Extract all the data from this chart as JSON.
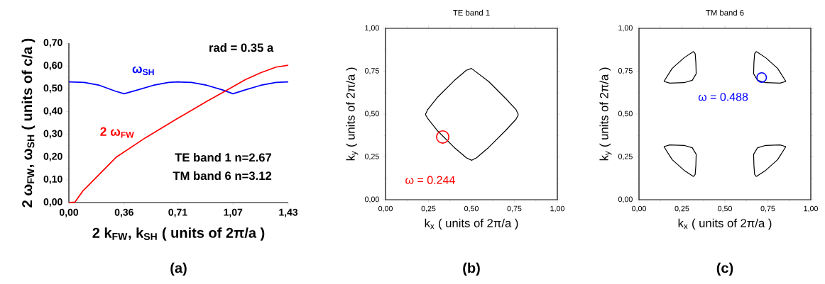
{
  "chart_data": [
    {
      "type": "line",
      "xlabel": "2 k$_{FW}$, k$_{SH}$ ( units of 2π/a )",
      "ylabel": "2 ω$_{FW}$, ω$_{SH}$ ( units of c/a )",
      "xlim": [
        0,
        1.43
      ],
      "ylim": [
        0,
        0.7
      ],
      "xticks": [
        {
          "value": 0,
          "label": "0,00"
        },
        {
          "value": 0.36,
          "label": "0,36"
        },
        {
          "value": 0.71,
          "label": "0,71"
        },
        {
          "value": 1.07,
          "label": "1,07"
        },
        {
          "value": 1.43,
          "label": "1,43"
        }
      ],
      "yticks": [
        {
          "value": 0,
          "label": "0,00"
        },
        {
          "value": 0.1,
          "label": "0,10"
        },
        {
          "value": 0.2,
          "label": "0,20"
        },
        {
          "value": 0.3,
          "label": "0,30"
        },
        {
          "value": 0.4,
          "label": "0,40"
        },
        {
          "value": 0.5,
          "label": "0,50"
        },
        {
          "value": 0.6,
          "label": "0,60"
        },
        {
          "value": 0.7,
          "label": "0,70"
        }
      ],
      "series": [
        {
          "name": "ω$_{SH}$",
          "color": "#0000ff",
          "x": [
            0,
            0.1,
            0.2,
            0.3,
            0.36,
            0.45,
            0.55,
            0.65,
            0.71,
            0.8,
            0.9,
            1.0,
            1.07,
            1.15,
            1.25,
            1.35,
            1.43
          ],
          "values": [
            0.53,
            0.528,
            0.515,
            0.49,
            0.478,
            0.495,
            0.515,
            0.528,
            0.53,
            0.528,
            0.515,
            0.495,
            0.478,
            0.495,
            0.515,
            0.528,
            0.53
          ]
        },
        {
          "name": "2 ω$_{FW}$",
          "color": "#ff0000",
          "x": [
            0,
            0.04,
            0.09,
            0.2,
            0.31,
            0.5,
            0.71,
            0.9,
            1.02,
            1.15,
            1.25,
            1.35,
            1.43
          ],
          "values": [
            0,
            0.002,
            0.05,
            0.125,
            0.2,
            0.285,
            0.37,
            0.445,
            0.49,
            0.54,
            0.57,
            0.595,
            0.603
          ]
        }
      ],
      "annotations": [
        "rad = 0.35 a",
        "TE band 1 n=2.67",
        "TM band 6 n=3.12",
        "(a)"
      ]
    },
    {
      "type": "line",
      "title": "TE band 1",
      "xlabel": "k$_{x}$ ( units of 2π/a )",
      "ylabel": "k$_{y}$ ( units of 2π/a )",
      "xlim": [
        0,
        1
      ],
      "ylim": [
        0,
        1
      ],
      "xticks": [
        {
          "value": 0,
          "label": "0,00"
        },
        {
          "value": 0.25,
          "label": "0,25"
        },
        {
          "value": 0.5,
          "label": "0,50"
        },
        {
          "value": 0.75,
          "label": "0,75"
        },
        {
          "value": 1,
          "label": "1,00"
        }
      ],
      "yticks": [
        {
          "value": 0,
          "label": "0,00"
        },
        {
          "value": 0.25,
          "label": "0,25"
        },
        {
          "value": 0.5,
          "label": "0,50"
        },
        {
          "value": 0.75,
          "label": "0,75"
        },
        {
          "value": 1,
          "label": "1,00"
        }
      ],
      "series": [
        {
          "color": "#000000",
          "x": [
            0.232,
            0.245,
            0.3,
            0.4,
            0.47,
            0.5,
            0.6,
            0.7,
            0.76,
            0.773
          ],
          "values": [
            0.497,
            0.525,
            0.595,
            0.695,
            0.755,
            0.766,
            0.69,
            0.59,
            0.525,
            0.497
          ]
        },
        {
          "color": "#000000",
          "x": [
            0.232,
            0.245,
            0.3,
            0.4,
            0.47,
            0.502,
            0.53,
            0.6,
            0.7,
            0.76,
            0.773
          ],
          "values": [
            0.497,
            0.475,
            0.405,
            0.305,
            0.245,
            0.23,
            0.245,
            0.305,
            0.405,
            0.47,
            0.497
          ]
        },
        {
          "type": "scatter",
          "name": "ω = 0.244",
          "color": "#ff0000",
          "marker": "circle",
          "x": [
            0.333
          ],
          "values": [
            0.366
          ]
        }
      ],
      "annotations": [
        "(b)"
      ]
    },
    {
      "type": "line",
      "title": "TM band 6",
      "xlabel": "k$_{x}$ ( units of 2π/a )",
      "ylabel": "k$_{y}$ ( units of 2π/a )",
      "xlim": [
        0,
        1
      ],
      "ylim": [
        0,
        1
      ],
      "xticks": [
        {
          "value": 0,
          "label": "0,00"
        },
        {
          "value": 0.25,
          "label": "0,25"
        },
        {
          "value": 0.5,
          "label": "0,50"
        },
        {
          "value": 0.75,
          "label": "0,75"
        },
        {
          "value": 1,
          "label": "1,00"
        }
      ],
      "yticks": [
        {
          "value": 0,
          "label": "0,00"
        },
        {
          "value": 0.25,
          "label": "0,25"
        },
        {
          "value": 0.5,
          "label": "0,50"
        },
        {
          "value": 0.75,
          "label": "0,75"
        },
        {
          "value": 1,
          "label": "1,00"
        }
      ],
      "series": [
        {
          "color": "#000000",
          "x": [
            0.145,
            0.193,
            0.262,
            0.317
          ],
          "values": [
            0.69,
            0.766,
            0.828,
            0.865
          ]
        },
        {
          "color": "#000000",
          "x": [
            0.317,
            0.327,
            0.331,
            0.333
          ],
          "values": [
            0.865,
            0.852,
            0.8,
            0.735
          ]
        },
        {
          "color": "#000000",
          "x": [
            0.145,
            0.179,
            0.262,
            0.31,
            0.333
          ],
          "values": [
            0.69,
            0.68,
            0.683,
            0.697,
            0.735
          ]
        },
        {
          "color": "#000000",
          "x": [
            0.683,
            0.738,
            0.807,
            0.855
          ],
          "values": [
            0.865,
            0.828,
            0.766,
            0.69
          ]
        },
        {
          "color": "#000000",
          "x": [
            0.667,
            0.669,
            0.673,
            0.683
          ],
          "values": [
            0.735,
            0.8,
            0.852,
            0.865
          ]
        },
        {
          "color": "#000000",
          "x": [
            0.667,
            0.69,
            0.738,
            0.821,
            0.855
          ],
          "values": [
            0.735,
            0.697,
            0.683,
            0.68,
            0.69
          ]
        },
        {
          "color": "#000000",
          "x": [
            0.145,
            0.193,
            0.262,
            0.317
          ],
          "values": [
            0.31,
            0.234,
            0.172,
            0.135
          ]
        },
        {
          "color": "#000000",
          "x": [
            0.317,
            0.327,
            0.331,
            0.333
          ],
          "values": [
            0.135,
            0.148,
            0.2,
            0.265
          ]
        },
        {
          "color": "#000000",
          "x": [
            0.145,
            0.179,
            0.262,
            0.31,
            0.333
          ],
          "values": [
            0.31,
            0.32,
            0.317,
            0.303,
            0.265
          ]
        },
        {
          "color": "#000000",
          "x": [
            0.683,
            0.738,
            0.807,
            0.855
          ],
          "values": [
            0.135,
            0.172,
            0.234,
            0.31
          ]
        },
        {
          "color": "#000000",
          "x": [
            0.667,
            0.669,
            0.673,
            0.683
          ],
          "values": [
            0.265,
            0.2,
            0.148,
            0.135
          ]
        },
        {
          "color": "#000000",
          "x": [
            0.667,
            0.69,
            0.738,
            0.821,
            0.855
          ],
          "values": [
            0.265,
            0.303,
            0.317,
            0.32,
            0.31
          ]
        },
        {
          "type": "scatter",
          "name": "ω = 0.488",
          "color": "#0000ff",
          "marker": "circle",
          "x": [
            0.714
          ],
          "values": [
            0.713
          ]
        }
      ],
      "annotations": [
        "(c)"
      ]
    }
  ]
}
